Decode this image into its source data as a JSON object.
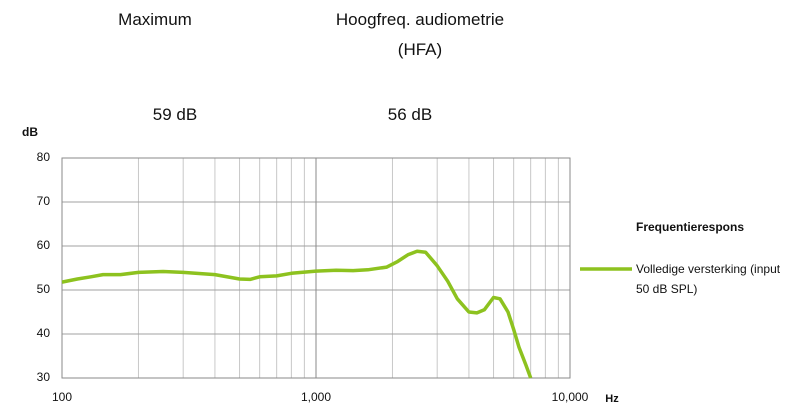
{
  "headers": [
    {
      "title": "Maximum",
      "value": "59 dB"
    },
    {
      "title": "Hoogfreq. audiometrie (HFA)",
      "value": "56 dB"
    }
  ],
  "chart_data": {
    "type": "line",
    "ylabel": "dB",
    "xlabel": "Hz",
    "log_x": true,
    "grid": true,
    "minor_grid": true,
    "legend_title": "Frequentierespons",
    "legend": "right",
    "xlim": [
      100,
      10000
    ],
    "xticks": [
      100,
      {
        "value": 1000,
        "label": "1,000"
      },
      {
        "value": 10000,
        "label": "10,000"
      }
    ],
    "ylim": [
      30,
      80
    ],
    "yticks": [
      30,
      40,
      50,
      60,
      70,
      80
    ],
    "x": [
      100,
      115,
      130,
      145,
      170,
      200,
      250,
      300,
      400,
      500,
      550,
      600,
      700,
      800,
      1000,
      1200,
      1400,
      1600,
      1900,
      2100,
      2300,
      2500,
      2700,
      3000,
      3300,
      3600,
      4000,
      4300,
      4600,
      5000,
      5300,
      5700,
      6000,
      6300,
      6700,
      7000
    ],
    "series": [
      {
        "name": "Volledige versterking (input 50 dB SPL)",
        "color": "#8dc21f",
        "values": [
          51.8,
          52.5,
          53,
          53.5,
          53.5,
          54,
          54.2,
          54,
          53.5,
          52.5,
          52.4,
          53,
          53.2,
          53.8,
          54.3,
          54.5,
          54.4,
          54.6,
          55.2,
          56.5,
          58,
          58.8,
          58.6,
          55.5,
          52,
          48,
          45,
          44.8,
          45.5,
          48.3,
          48,
          45,
          41,
          37,
          33,
          30
        ]
      }
    ]
  }
}
